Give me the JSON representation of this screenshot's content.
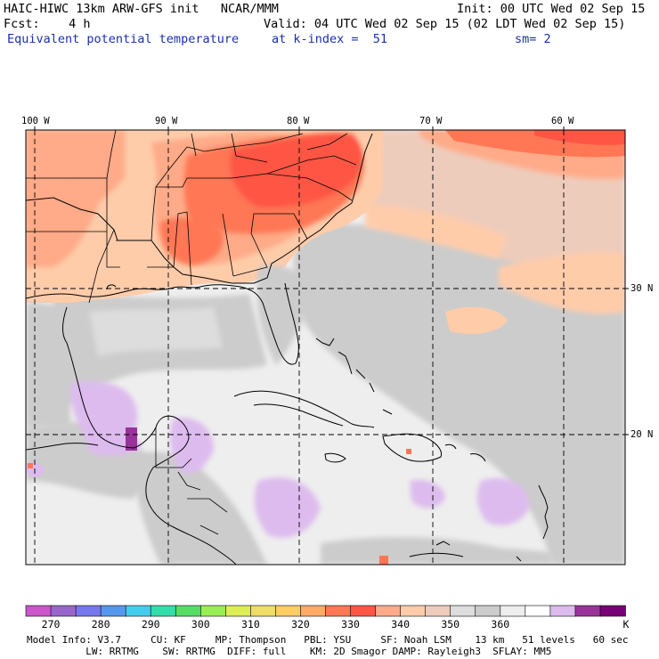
{
  "header": {
    "line1_left": "HAIC-HIWC 13km ARW-GFS init   NCAR/MMM",
    "line1_right": "Init: 00 UTC Wed 02 Sep 15",
    "line2_left": "Fcst:    4 h",
    "line2_right": "Valid: 04 UTC Wed 02 Sep 15 (02 LDT Wed 02 Sep 15)",
    "field_name": "Equivalent potential temperature",
    "level": "at k-index =  51",
    "smoothing": "sm= 2"
  },
  "map": {
    "longitude_labels": [
      "100 W",
      "90 W",
      "80 W",
      "70 W",
      "60 W"
    ],
    "latitude_labels": [
      "30 N",
      "20 N"
    ]
  },
  "colorbar": {
    "unit": "K",
    "tick_labels": [
      "270",
      "280",
      "290",
      "300",
      "310",
      "320",
      "330",
      "340",
      "350",
      "360"
    ],
    "colors": [
      "#cc55cc",
      "#9966cc",
      "#7777ee",
      "#5599ee",
      "#44ccee",
      "#33ddaa",
      "#55dd66",
      "#99ee55",
      "#ddee55",
      "#eedd66",
      "#ffcc66",
      "#ffaa66",
      "#ff7755",
      "#ff5544",
      "#ffaa88",
      "#ffccaa",
      "#eeccbb",
      "#dddddd",
      "#cccccc",
      "#eeeeee",
      "#ffffff",
      "#ddbbee",
      "#993399",
      "#770077"
    ]
  },
  "footer": {
    "line1": "Model Info: V3.7     CU: KF     MP: Thompson   PBL: YSU     SF: Noah LSM    13 km   51 levels   60 sec",
    "line2": "          LW: RRTMG    SW: RRTMG  DIFF: full    KM: 2D Smagor DAMP: Rayleigh3  SFLAY: MM5"
  }
}
